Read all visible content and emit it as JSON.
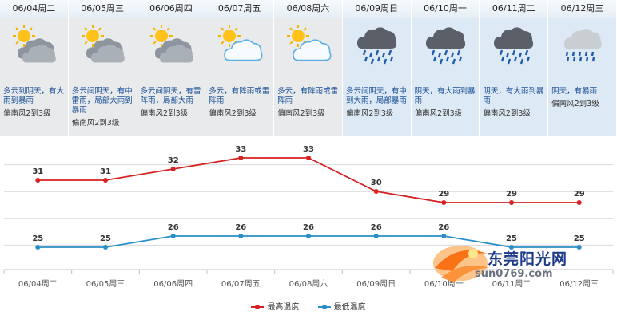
{
  "days": [
    {
      "date": "06/04周二",
      "desc": "多云到阴天，有大雨到暴雨",
      "wind": "偏南风2到3级",
      "icon": "partly-cloudy-sun-dark-icon"
    },
    {
      "date": "06/05周三",
      "desc": "多云间阴天，有中雷雨，局部大雨到暴雨",
      "wind": "偏南风2到3级",
      "icon": "partly-cloudy-sun-dark-icon"
    },
    {
      "date": "06/06周四",
      "desc": "多云间阴天，有雷阵雨，局部大雨",
      "wind": "偏南风2到3级",
      "icon": "partly-cloudy-sun-dark-icon"
    },
    {
      "date": "06/07周五",
      "desc": "多云，有阵雨或雷阵雨",
      "wind": "偏南风2到3级",
      "icon": "partly-cloudy-sun-light-icon"
    },
    {
      "date": "06/08周六",
      "desc": "多云，有阵雨或雷阵雨",
      "wind": "偏南风2到3级",
      "icon": "partly-cloudy-sun-light-icon"
    },
    {
      "date": "06/09周日",
      "desc": "多云间阴天，有中到大雨，局部暴雨",
      "wind": "偏南风2到3级",
      "icon": "heavy-rain-cloud-icon"
    },
    {
      "date": "06/10周一",
      "desc": "阴天，有大雨到暴雨",
      "wind": "偏南风2到3级",
      "icon": "heavy-rain-cloud-icon"
    },
    {
      "date": "06/11周二",
      "desc": "阴天，有大雨到暴雨",
      "wind": "偏南风2到3级",
      "icon": "heavy-rain-cloud-icon"
    },
    {
      "date": "06/12周三",
      "desc": "阴天，有暴雨",
      "wind": "偏南风2到3级",
      "icon": "rainstorm-cloud-icon"
    }
  ],
  "chart_data": {
    "type": "line",
    "categories": [
      "06/04周二",
      "06/05周三",
      "06/06周四",
      "06/07周五",
      "06/08周六",
      "06/09周日",
      "06/10周一",
      "06/11周二",
      "06/12周三"
    ],
    "series": [
      {
        "name": "最高温度",
        "values": [
          31,
          31,
          32,
          33,
          33,
          30,
          29,
          29,
          29
        ],
        "color": "#d62222"
      },
      {
        "name": "最低温度",
        "values": [
          25,
          25,
          26,
          26,
          26,
          26,
          26,
          25,
          25
        ],
        "color": "#2a8fc8"
      }
    ],
    "ylim": [
      23,
      35
    ],
    "grid": true,
    "legend_position": "bottom-center",
    "title": "",
    "xlabel": "",
    "ylabel": ""
  },
  "legend": {
    "high": "最高温度",
    "low": "最低温度"
  },
  "watermark": {
    "title": "东莞阳光网",
    "url": "sun0769.com"
  },
  "colors": {
    "high": "#d62222",
    "low": "#2a8fc8",
    "desc": "#1a4f97",
    "panel_grey": "#e8eaec",
    "panel_blue": "#dde9f4"
  }
}
